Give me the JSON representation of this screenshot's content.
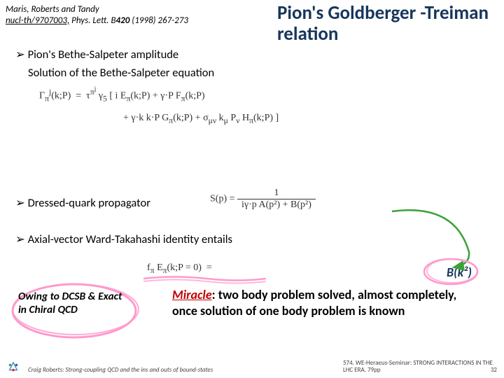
{
  "citation": {
    "authors": "Maris, Roberts and Tandy",
    "ref_underlined": "nucl-th/9707003,",
    "ref_rest": " Phys. Lett. B",
    "vol": "420",
    "pages": " (1998) 267-273"
  },
  "title": "Pion's Goldberger -Treiman relation",
  "bullets": {
    "b1": "Pion's Bethe-Salpeter amplitude",
    "sub1": "Solution of the Bethe-Salpeter equation",
    "b2": "Dressed-quark propagator",
    "b3": "Axial-vector Ward-Takahashi identity entails"
  },
  "bk2": "B(k²)",
  "owing": "Owing to DCSB & Exact in Chiral QCD",
  "miracle_word": "Miracle",
  "miracle_rest": ": two body problem solved, almost completely, once solution of one body problem is known",
  "footer": {
    "left": "Craig Roberts: Strong-coupling QCD and the ins and outs of bound-states",
    "right_line1": "574. WE-Heraeus-Seminar: STRONG INTERACTIONS IN THE",
    "right_line2": "LHC ERA. 79pp",
    "page": "32"
  },
  "colors": {
    "title": "#17365d",
    "miracle": "#c00000",
    "scribble": "#ff99cc",
    "arrow_green": "#3aa23a"
  },
  "equations": {
    "eq1_line1": "Γ<sub>π</sub><sup>j</sup>(k;P)&nbsp;&nbsp;=&nbsp;&nbsp;τ<sup>π<sup>j</sup></sup> γ<sub>5</sub> [ i E<sub>π</sub>(k;P) + γ·P F<sub>π</sub>(k;P)",
    "eq1_line2": "+ γ·k k·P G<sub>π</sub>(k;P) + σ<sub>μν</sub> k<sub>μ</sub> P<sub>ν</sub> H<sub>π</sub>(k;P) ]",
    "eq2": "S(p) = <span style='display:inline-block;vertical-align:middle;text-align:center'><span style='display:block;border-bottom:1px solid #333;padding:0 6px'>1</span><span style='display:block;padding:0 6px'>iγ·p A(p²) + B(p²)</span></span>",
    "eq3": "f<sub>π</sub> E<sub>π</sub>(k;P = 0)&nbsp;&nbsp;=&nbsp;&nbsp;"
  }
}
